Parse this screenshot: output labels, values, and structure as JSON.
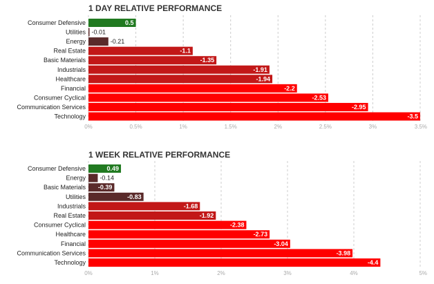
{
  "colors": {
    "positive": "#217a21",
    "small_negative": "#5a2a2a",
    "medium_negative": "#c21818",
    "large_negative": "#ff0000",
    "grid": "#cccccc",
    "tick_text": "#aaaaaa",
    "label_text": "#222222",
    "title_text": "#333333"
  },
  "chart_data": [
    {
      "type": "bar",
      "orientation": "horizontal",
      "title": "1 DAY RELATIVE PERFORMANCE",
      "categories": [
        "Consumer Defensive",
        "Utilities",
        "Energy",
        "Real Estate",
        "Basic Materials",
        "Industrials",
        "Healthcare",
        "Financial",
        "Consumer Cyclical",
        "Communication Services",
        "Technology"
      ],
      "values": [
        0.5,
        -0.01,
        -0.21,
        -1.1,
        -1.35,
        -1.91,
        -1.94,
        -2.2,
        -2.53,
        -2.95,
        -3.5
      ],
      "value_labels": [
        "0.5",
        "-0.01",
        "-0.21",
        "-1.1",
        "-1.35",
        "-1.91",
        "-1.94",
        "-2.2",
        "-2.53",
        "-2.95",
        "-3.5"
      ],
      "xlim": [
        0,
        3.5
      ],
      "xticks": [
        "0%",
        "0.5%",
        "1%",
        "1.5%",
        "2%",
        "2.5%",
        "3%",
        "3.5%"
      ],
      "scale": "absolute value",
      "grid": "vertical dashed"
    },
    {
      "type": "bar",
      "orientation": "horizontal",
      "title": "1 WEEK RELATIVE PERFORMANCE",
      "categories": [
        "Consumer Defensive",
        "Energy",
        "Basic Materials",
        "Utilities",
        "Industrials",
        "Real Estate",
        "Consumer Cyclical",
        "Healthcare",
        "Financial",
        "Communication Services",
        "Technology"
      ],
      "values": [
        0.49,
        -0.14,
        -0.39,
        -0.83,
        -1.68,
        -1.92,
        -2.38,
        -2.73,
        -3.04,
        -3.98,
        -4.4
      ],
      "value_labels": [
        "0.49",
        "-0.14",
        "-0.39",
        "-0.83",
        "-1.68",
        "-1.92",
        "-2.38",
        "-2.73",
        "-3.04",
        "-3.98",
        "-4.4"
      ],
      "xlim": [
        0,
        5
      ],
      "xticks": [
        "0%",
        "1%",
        "2%",
        "3%",
        "4%",
        "5%"
      ],
      "scale": "absolute value",
      "grid": "vertical dashed"
    }
  ]
}
